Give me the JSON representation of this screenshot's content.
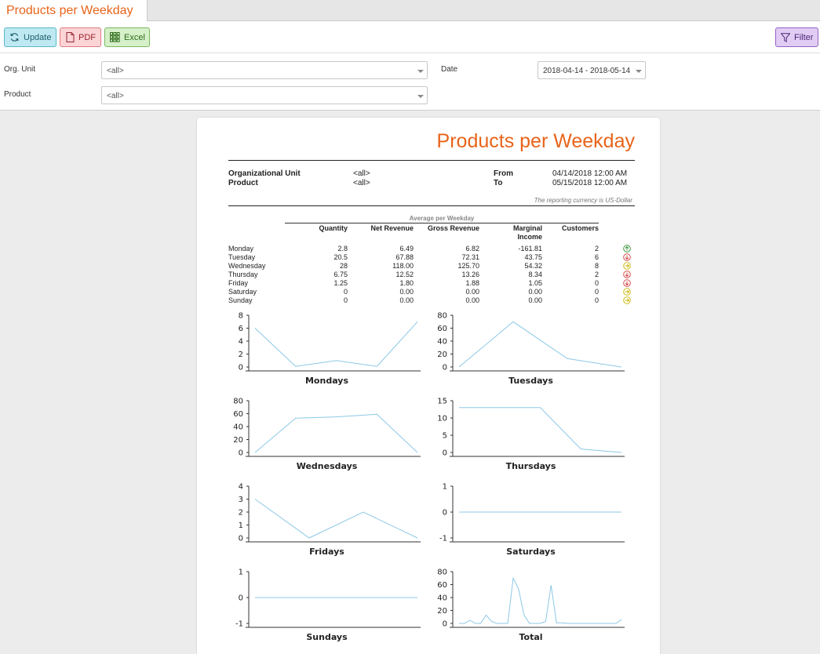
{
  "tab": {
    "label": "Products per Weekday"
  },
  "toolbar": {
    "update_label": "Update",
    "pdf_label": "PDF",
    "excel_label": "Excel",
    "filter_label": "Filter"
  },
  "filters": {
    "org_unit_label": "Org. Unit",
    "org_unit_value": "<all>",
    "product_label": "Product",
    "product_value": "<all>",
    "date_label": "Date",
    "date_value": "2018-04-14 - 2018-05-14"
  },
  "report": {
    "title": "Products per Weekday",
    "meta": {
      "org_unit_label": "Organizational Unit",
      "org_unit_value": "<all>",
      "product_label": "Product",
      "product_value": "<all>",
      "from_label": "From",
      "from_value": "04/14/2018 12:00 AM",
      "to_label": "To",
      "to_value": "05/15/2018 12:00 AM"
    },
    "currency_note": "The reporting currency is US-Dollar",
    "table": {
      "group_title": "Average per Weekday",
      "headers": {
        "quantity": "Quantity",
        "net_revenue": "Net Revenue",
        "gross_revenue": "Gross Revenue",
        "marginal_income_1": "Marginal",
        "marginal_income_2": "Income",
        "customers": "Customers"
      },
      "rows": [
        {
          "day": "Monday",
          "quantity": "2.8",
          "net": "6.49",
          "gross": "6.82",
          "marginal": "-161.81",
          "customers": "2",
          "trend": "up"
        },
        {
          "day": "Tuesday",
          "quantity": "20.5",
          "net": "67.88",
          "gross": "72.31",
          "marginal": "43.75",
          "customers": "6",
          "trend": "down"
        },
        {
          "day": "Wednesday",
          "quantity": "28",
          "net": "118.00",
          "gross": "125.70",
          "marginal": "54.32",
          "customers": "8",
          "trend": "flat"
        },
        {
          "day": "Thursday",
          "quantity": "6.75",
          "net": "12.52",
          "gross": "13.26",
          "marginal": "8.34",
          "customers": "2",
          "trend": "down"
        },
        {
          "day": "Friday",
          "quantity": "1.25",
          "net": "1.80",
          "gross": "1.88",
          "marginal": "1.05",
          "customers": "0",
          "trend": "down"
        },
        {
          "day": "Saturday",
          "quantity": "0",
          "net": "0.00",
          "gross": "0.00",
          "marginal": "0.00",
          "customers": "0",
          "trend": "flat"
        },
        {
          "day": "Sunday",
          "quantity": "0",
          "net": "0.00",
          "gross": "0.00",
          "marginal": "0.00",
          "customers": "0",
          "trend": "flat"
        }
      ]
    },
    "trend_colors": {
      "up": "#2e8b2e",
      "down": "#d23a3a",
      "flat": "#c9b400"
    }
  },
  "chart_data": [
    {
      "type": "line",
      "title": "Mondays",
      "ylim": [
        0,
        8
      ],
      "yticks": [
        0,
        2,
        4,
        6,
        8
      ],
      "values": [
        6,
        0.1,
        1,
        0.1,
        7
      ],
      "color": "#8cc8e6"
    },
    {
      "type": "line",
      "title": "Tuesdays",
      "ylim": [
        0,
        80
      ],
      "yticks": [
        0,
        20,
        40,
        60,
        80
      ],
      "values": [
        0,
        70,
        13,
        0
      ],
      "color": "#8cc8e6"
    },
    {
      "type": "line",
      "title": "Wednesdays",
      "ylim": [
        0,
        80
      ],
      "yticks": [
        0,
        20,
        40,
        60,
        80
      ],
      "values": [
        0,
        53,
        55,
        59,
        0
      ],
      "color": "#8cc8e6"
    },
    {
      "type": "line",
      "title": "Thursdays",
      "ylim": [
        0,
        15
      ],
      "yticks": [
        0,
        5,
        10,
        15
      ],
      "values": [
        13,
        13,
        13,
        1,
        0
      ],
      "color": "#8cc8e6"
    },
    {
      "type": "line",
      "title": "Fridays",
      "ylim": [
        0,
        4
      ],
      "yticks": [
        0,
        1,
        2,
        3,
        4
      ],
      "values": [
        3,
        0,
        2,
        0
      ],
      "color": "#8cc8e6"
    },
    {
      "type": "line",
      "title": "Saturdays",
      "ylim": [
        -1,
        1
      ],
      "yticks": [
        -1,
        0,
        1
      ],
      "values": [
        0,
        0,
        0,
        0
      ],
      "color": "#8cc8e6"
    },
    {
      "type": "line",
      "title": "Sundays",
      "ylim": [
        -1,
        1
      ],
      "yticks": [
        -1,
        0,
        1
      ],
      "values": [
        0,
        0,
        0,
        0
      ],
      "color": "#8cc8e6"
    },
    {
      "type": "line",
      "title": "Total",
      "ylim": [
        0,
        80
      ],
      "yticks": [
        0,
        20,
        40,
        60,
        80
      ],
      "values": [
        0,
        0,
        5,
        0,
        0,
        13,
        3,
        0,
        0,
        0,
        70,
        53,
        13,
        0,
        0,
        0,
        3,
        59,
        1,
        1,
        0,
        0,
        0,
        0,
        0,
        0,
        0,
        0,
        0,
        0,
        6
      ],
      "color": "#8cc8e6"
    }
  ]
}
